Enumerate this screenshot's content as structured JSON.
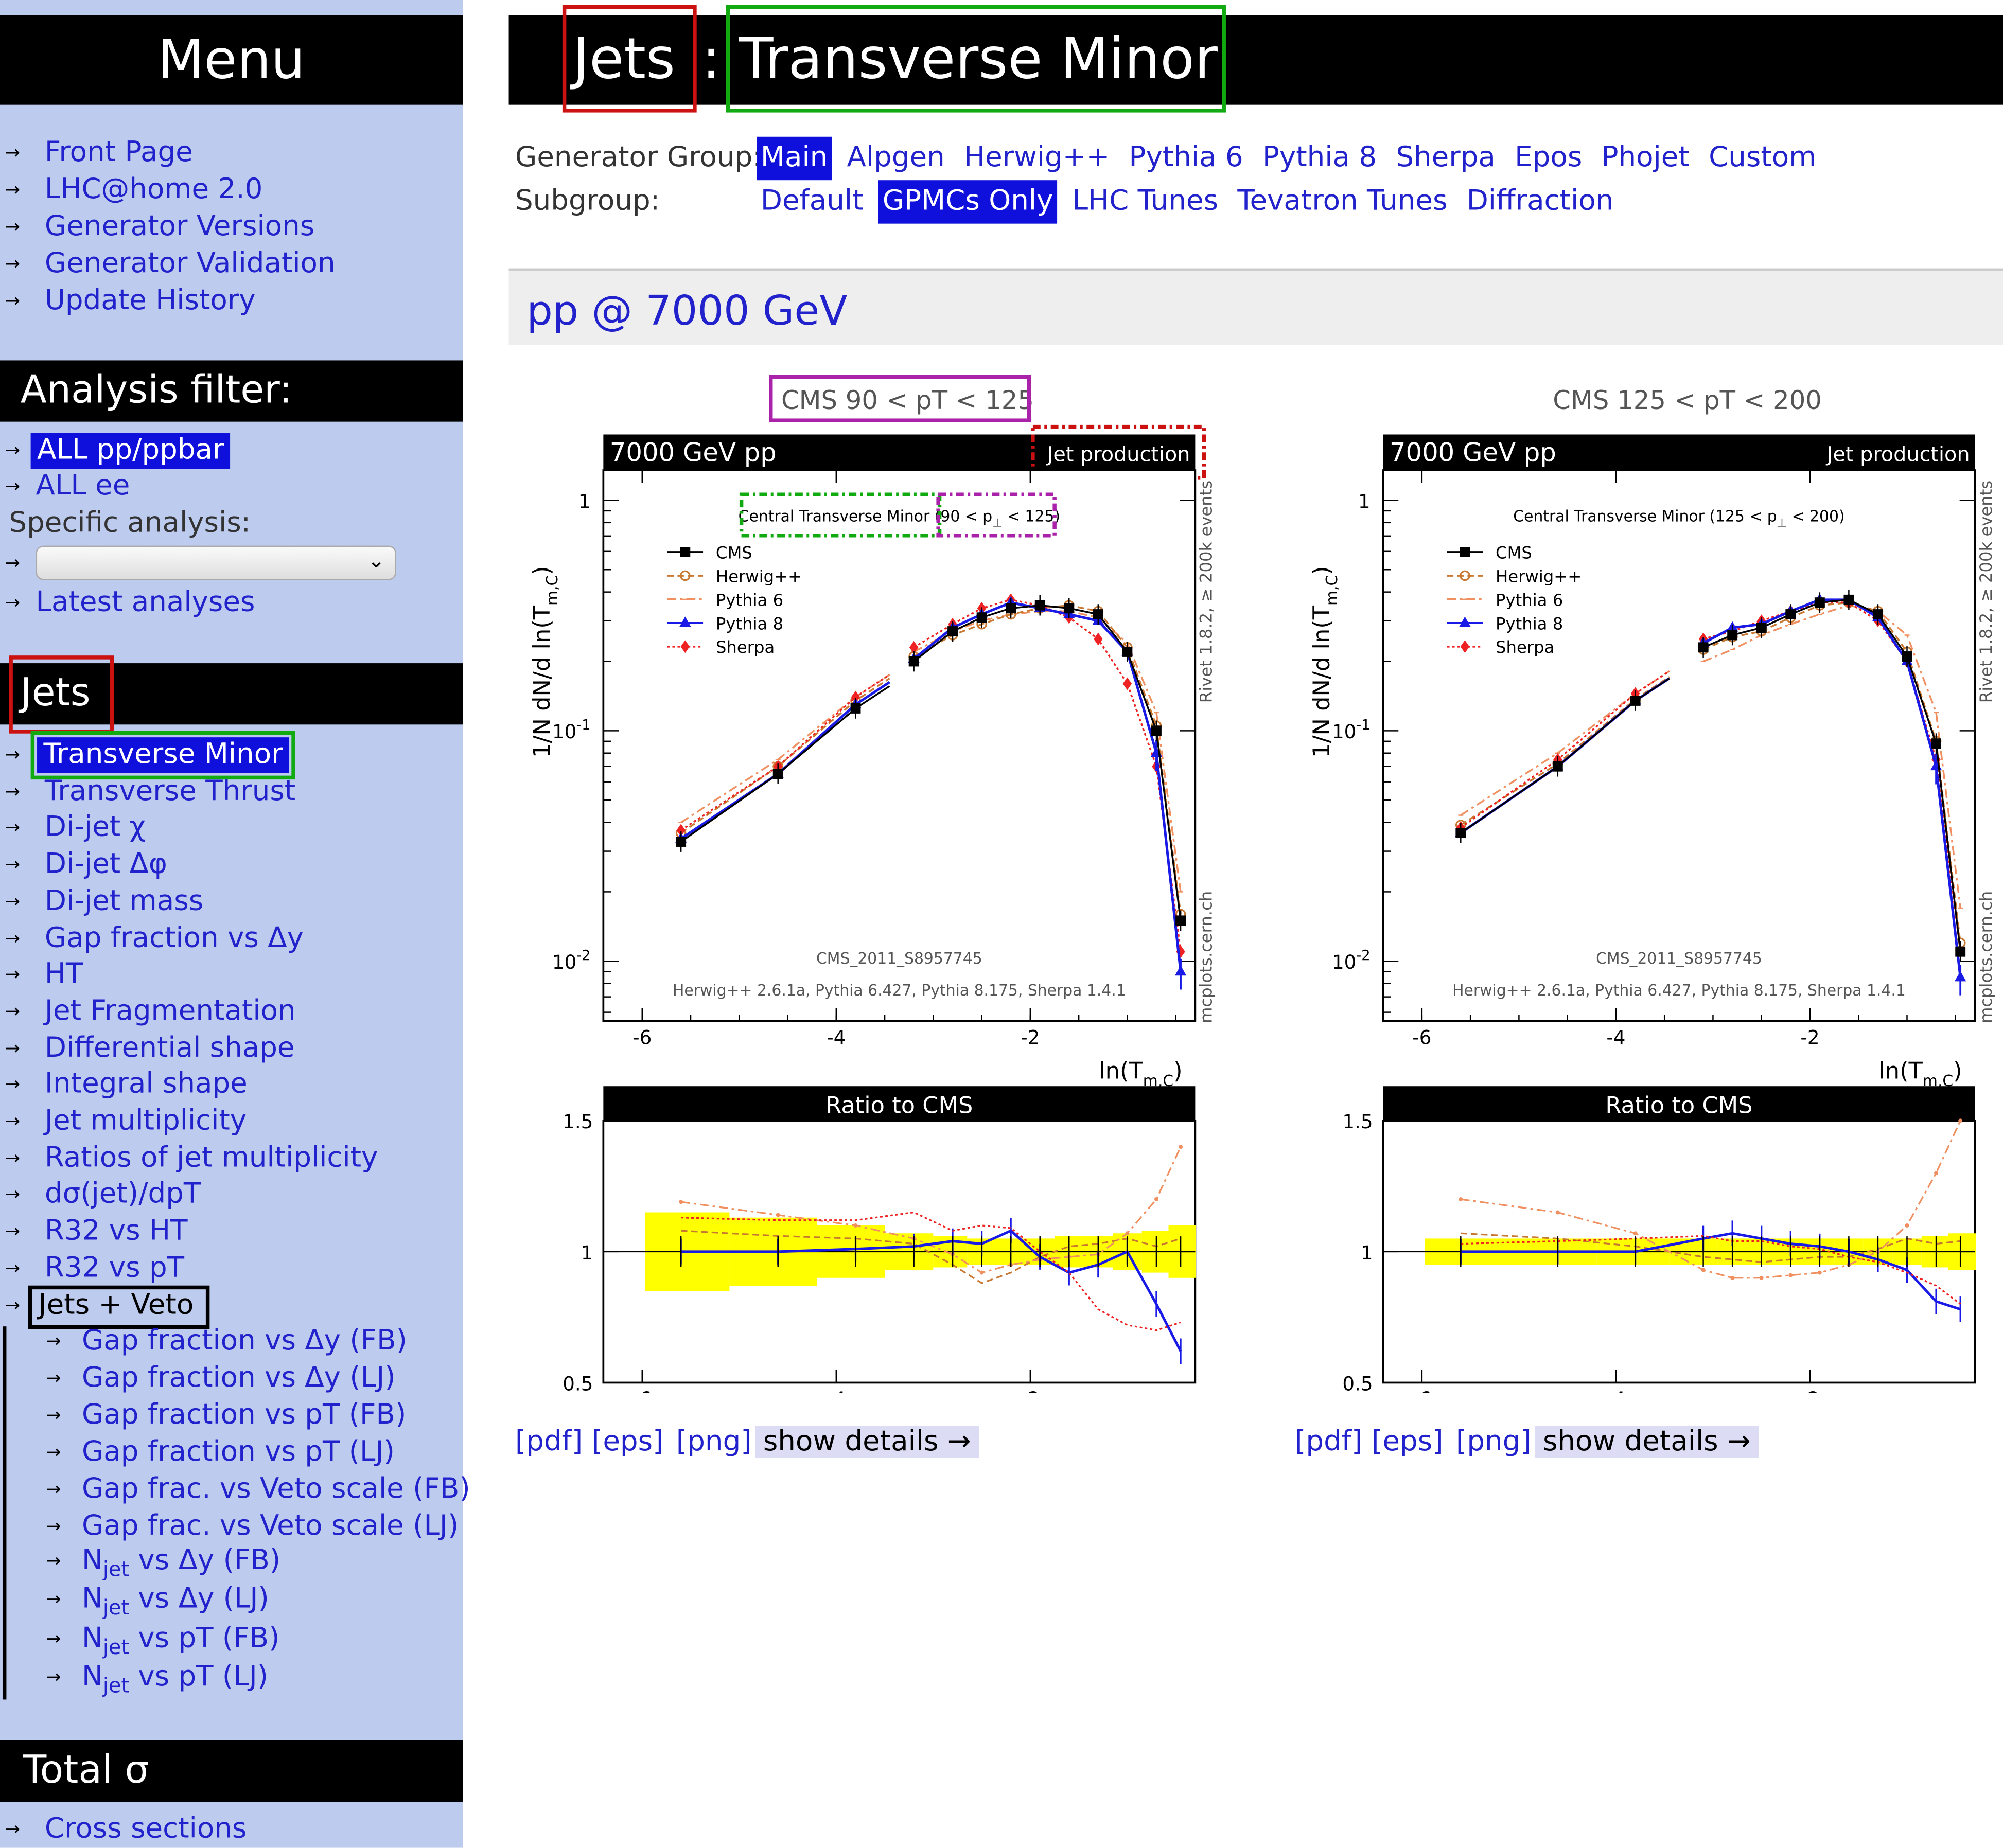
{
  "colors": {
    "sidebar_bg": "#bccbee",
    "header_bg": "#000000",
    "link": "#2222cc",
    "highlight": "#1010dd",
    "ratio_band": "#ffff00",
    "cms": "#000000",
    "herwig": "#c87830",
    "pythia6": "#f09060",
    "pythia8": "#1a1ae6",
    "sherpa": "#ee2222",
    "box_red": "#cc1111",
    "box_green": "#11aa11",
    "box_purple": "#aa22aa"
  },
  "sidebar": {
    "menu_title": "Menu",
    "menu_items": [
      "Front Page",
      "LHC@home 2.0",
      "Generator Versions",
      "Generator Validation",
      "Update History"
    ],
    "filter_title": "Analysis filter:",
    "filter_all_pp": "ALL pp/ppbar",
    "filter_all_ee": "ALL ee",
    "specific_label": "Specific analysis:",
    "specific_value": "",
    "latest": "Latest analyses",
    "jets_title": "Jets",
    "jets_items": [
      "Transverse Minor",
      "Transverse Thrust",
      "Di-jet χ",
      "Di-jet Δφ",
      "Di-jet mass",
      "Gap fraction vs Δy",
      "HT",
      "Jet Fragmentation",
      "Differential shape",
      "Integral shape",
      "Jet multiplicity",
      "Ratios of jet multiplicity",
      "dσ(jet)/dpT",
      "R32 vs HT",
      "R32 vs pT",
      "Jets + Veto"
    ],
    "veto_items": [
      "Gap fraction vs Δy (FB)",
      "Gap fraction vs Δy (LJ)",
      "Gap fraction vs pT (FB)",
      "Gap fraction vs pT (LJ)",
      "Gap frac. vs Veto scale (FB)",
      "Gap frac. vs Veto scale (LJ)"
    ],
    "njet_items": [
      {
        "base": "N",
        "sub": "jet",
        "rest": " vs Δy (FB)"
      },
      {
        "base": "N",
        "sub": "jet",
        "rest": " vs Δy (LJ)"
      },
      {
        "base": "N",
        "sub": "jet",
        "rest": " vs pT (FB)"
      },
      {
        "base": "N",
        "sub": "jet",
        "rest": " vs pT (LJ)"
      }
    ],
    "total_title": "Total σ",
    "total_items": [
      "Cross sections"
    ]
  },
  "header": {
    "category": "Jets",
    "separator": ":",
    "observable": "Transverse Minor"
  },
  "generator_group": {
    "label": "Generator Group:",
    "options": [
      "Main",
      "Alpgen",
      "Herwig++",
      "Pythia 6",
      "Pythia 8",
      "Sherpa",
      "Epos",
      "Phojet",
      "Custom"
    ],
    "selected": "Main"
  },
  "subgroup": {
    "label": "Subgroup:",
    "options": [
      "Default",
      "GPMCs Only",
      "LHC Tunes",
      "Tevatron Tunes",
      "Diffraction"
    ],
    "selected": "GPMCs Only"
  },
  "section_title": "pp @ 7000 GeV",
  "plot_links": {
    "pdf": "[pdf]",
    "eps": "[eps]",
    "png": "[png]",
    "details": "show details →"
  },
  "chart_data": [
    {
      "type": "line",
      "title": "CMS 90 < pT < 125",
      "beam_label": "7000 GeV pp",
      "process_label": "Jet production",
      "plot_text_main": "Central Transverse Minor (",
      "plot_text_range": "90 < p",
      "plot_text_range_sub": "⊥",
      "plot_text_range_end": " < 125)",
      "side_label": "Rivet 1.8.2, ≥ 200k events",
      "side_label_bottom": "mcplots.cern.ch",
      "analysis_id": "CMS_2011_S8957745",
      "versions": "Herwig++ 2.6.1a, Pythia 6.427, Pythia 8.175, Sherpa 1.4.1",
      "xlabel": "ln(T",
      "xlabel_sub": "m,C",
      "ylabel": "1/N  dN/d ln(T",
      "ylabel_sub": "m,C",
      "ylog": true,
      "ylim": [
        0.0055,
        1.35
      ],
      "xlim": [
        -6.4,
        -0.3
      ],
      "xticks": [
        -6,
        -4,
        -2
      ],
      "yticks": [
        {
          "v": 1,
          "label": "1"
        },
        {
          "v": 0.1,
          "label": "10",
          "exp": "-1"
        },
        {
          "v": 0.01,
          "label": "10",
          "exp": "-2"
        }
      ],
      "x": [
        -5.6,
        -4.6,
        -3.8,
        -3.2,
        -2.8,
        -2.5,
        -2.2,
        -1.9,
        -1.6,
        -1.3,
        -1.0,
        -0.7,
        -0.45
      ],
      "series": [
        {
          "name": "CMS",
          "values": [
            0.033,
            0.065,
            0.125,
            0.2,
            0.27,
            0.31,
            0.34,
            0.35,
            0.34,
            0.32,
            0.22,
            0.1,
            0.015
          ]
        },
        {
          "name": "Herwig++",
          "values": [
            0.036,
            0.07,
            0.135,
            0.21,
            0.26,
            0.29,
            0.32,
            0.34,
            0.35,
            0.33,
            0.23,
            0.105,
            0.016
          ]
        },
        {
          "name": "Pythia 6",
          "values": [
            0.04,
            0.075,
            0.14,
            0.22,
            0.27,
            0.3,
            0.32,
            0.33,
            0.33,
            0.31,
            0.24,
            0.12,
            0.02
          ]
        },
        {
          "name": "Pythia 8",
          "values": [
            0.034,
            0.065,
            0.13,
            0.205,
            0.28,
            0.32,
            0.36,
            0.34,
            0.32,
            0.3,
            0.22,
            0.08,
            0.009
          ]
        },
        {
          "name": "Sherpa",
          "values": [
            0.037,
            0.07,
            0.14,
            0.23,
            0.29,
            0.34,
            0.37,
            0.35,
            0.31,
            0.25,
            0.16,
            0.07,
            0.011
          ]
        }
      ],
      "ratio_title": "Ratio to CMS",
      "ratio_ylim": [
        0.5,
        1.5
      ],
      "ratio_yticks": [
        {
          "v": 1.5,
          "label": "1.5"
        },
        {
          "v": 1,
          "label": "1"
        },
        {
          "v": 0.5,
          "label": "0.5"
        }
      ],
      "ratio_band": [
        0.15,
        0.13,
        0.1,
        0.07,
        0.06,
        0.05,
        0.05,
        0.05,
        0.06,
        0.06,
        0.07,
        0.08,
        0.1
      ],
      "ratios": [
        {
          "name": "Herwig++",
          "values": [
            1.08,
            1.06,
            1.05,
            1.03,
            0.95,
            0.88,
            0.92,
            0.98,
            1.02,
            1.03,
            1.05,
            1.02,
            1.05
          ]
        },
        {
          "name": "Pythia 6",
          "values": [
            1.19,
            1.14,
            1.1,
            1.05,
            0.99,
            0.92,
            0.95,
            0.97,
            0.98,
            0.99,
            1.07,
            1.2,
            1.4
          ]
        },
        {
          "name": "Pythia 8",
          "values": [
            1.0,
            1.0,
            1.01,
            1.02,
            1.04,
            1.03,
            1.08,
            0.98,
            0.92,
            0.95,
            1.0,
            0.8,
            0.62
          ]
        },
        {
          "name": "Sherpa",
          "values": [
            1.13,
            1.12,
            1.12,
            1.15,
            1.08,
            1.1,
            1.09,
            1.0,
            0.92,
            0.78,
            0.72,
            0.7,
            0.73
          ]
        }
      ]
    },
    {
      "type": "line",
      "title": "CMS 125 < pT < 200",
      "beam_label": "7000 GeV pp",
      "process_label": "Jet production",
      "plot_text_main": "Central Transverse Minor (",
      "plot_text_range": "125 < p",
      "plot_text_range_sub": "⊥",
      "plot_text_range_end": " < 200)",
      "side_label": "Rivet 1.8.2, ≥ 200k events",
      "side_label_bottom": "mcplots.cern.ch",
      "analysis_id": "CMS_2011_S8957745",
      "versions": "Herwig++ 2.6.1a, Pythia 6.427, Pythia 8.175, Sherpa 1.4.1",
      "xlabel": "ln(T",
      "xlabel_sub": "m,C",
      "ylabel": "1/N  dN/d ln(T",
      "ylabel_sub": "m,C",
      "ylog": true,
      "ylim": [
        0.0055,
        1.35
      ],
      "xlim": [
        -6.4,
        -0.3
      ],
      "xticks": [
        -6,
        -4,
        -2
      ],
      "yticks": [
        {
          "v": 1,
          "label": "1"
        },
        {
          "v": 0.1,
          "label": "10",
          "exp": "-1"
        },
        {
          "v": 0.01,
          "label": "10",
          "exp": "-2"
        }
      ],
      "x": [
        -5.6,
        -4.6,
        -3.8,
        -3.1,
        -2.8,
        -2.5,
        -2.2,
        -1.9,
        -1.6,
        -1.3,
        -1.0,
        -0.7,
        -0.45
      ],
      "series": [
        {
          "name": "CMS",
          "values": [
            0.036,
            0.07,
            0.135,
            0.23,
            0.26,
            0.28,
            0.32,
            0.36,
            0.37,
            0.32,
            0.21,
            0.088,
            0.011
          ]
        },
        {
          "name": "Herwig++",
          "values": [
            0.039,
            0.072,
            0.137,
            0.225,
            0.255,
            0.27,
            0.31,
            0.35,
            0.36,
            0.33,
            0.22,
            0.09,
            0.012
          ]
        },
        {
          "name": "Pythia 6",
          "values": [
            0.043,
            0.08,
            0.145,
            0.2,
            0.225,
            0.26,
            0.29,
            0.32,
            0.35,
            0.33,
            0.26,
            0.12,
            0.017
          ]
        },
        {
          "name": "Pythia 8",
          "values": [
            0.036,
            0.07,
            0.135,
            0.24,
            0.28,
            0.29,
            0.33,
            0.37,
            0.37,
            0.31,
            0.2,
            0.07,
            0.0085
          ]
        },
        {
          "name": "Sherpa",
          "values": [
            0.038,
            0.075,
            0.145,
            0.25,
            0.27,
            0.3,
            0.33,
            0.36,
            0.36,
            0.3,
            0.2,
            0.075,
            0.011
          ]
        }
      ],
      "ratio_title": "Ratio to CMS",
      "ratio_ylim": [
        0.5,
        1.5
      ],
      "ratio_yticks": [
        {
          "v": 1.5,
          "label": "1.5"
        },
        {
          "v": 1,
          "label": "1"
        },
        {
          "v": 0.5,
          "label": "0.5"
        }
      ],
      "ratio_band": [
        0.05,
        0.05,
        0.05,
        0.05,
        0.05,
        0.05,
        0.05,
        0.05,
        0.05,
        0.05,
        0.05,
        0.06,
        0.07
      ],
      "ratios": [
        {
          "name": "Herwig++",
          "values": [
            1.07,
            1.05,
            1.02,
            0.98,
            0.97,
            0.96,
            0.97,
            0.98,
            0.98,
            1.01,
            1.05,
            1.03,
            1.04
          ]
        },
        {
          "name": "Pythia 6",
          "values": [
            1.2,
            1.15,
            1.07,
            0.93,
            0.9,
            0.9,
            0.91,
            0.92,
            0.95,
            1.0,
            1.1,
            1.3,
            1.5
          ]
        },
        {
          "name": "Pythia 8",
          "values": [
            1.0,
            1.0,
            1.0,
            1.05,
            1.07,
            1.05,
            1.03,
            1.02,
            1.0,
            0.97,
            0.93,
            0.81,
            0.78
          ]
        },
        {
          "name": "Sherpa",
          "values": [
            1.03,
            1.04,
            1.05,
            1.06,
            1.04,
            1.04,
            1.02,
            1.01,
            0.98,
            0.96,
            0.92,
            0.87,
            0.8
          ]
        }
      ]
    }
  ]
}
